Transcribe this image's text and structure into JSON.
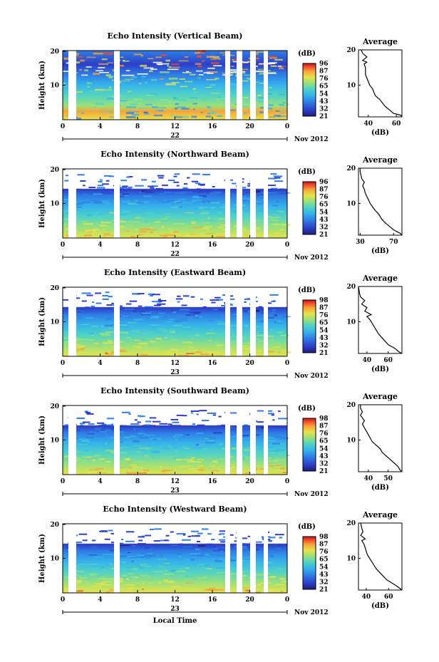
{
  "chart_data": [
    {
      "type": "heatmap",
      "title": "Echo Intensity (Vertical Beam)",
      "ylabel": "Height (km)",
      "y_ticks": [
        "20",
        "10"
      ],
      "x_ticks": [
        "0",
        "4",
        "8",
        "12",
        "16",
        "20",
        "0"
      ],
      "date_label": "22",
      "month_label": "Nov 2012",
      "colorbar_title": "(dB)",
      "colorbar_ticks": [
        "96",
        "87",
        "76",
        "65",
        "54",
        "43",
        "32",
        "21"
      ],
      "profile": {
        "title": "Average",
        "xlabel": "(dB)",
        "x_ticks": [
          "40",
          "60"
        ],
        "y_ticks": [
          "20",
          "10"
        ],
        "xlim": [
          33,
          64
        ],
        "values": [
          [
            64,
            1
          ],
          [
            63,
            1.5
          ],
          [
            58,
            2
          ],
          [
            55,
            3
          ],
          [
            52,
            4
          ],
          [
            50,
            5
          ],
          [
            48,
            6
          ],
          [
            45,
            7
          ],
          [
            44,
            8
          ],
          [
            43,
            9
          ],
          [
            41,
            10
          ],
          [
            40,
            11
          ],
          [
            39,
            12
          ],
          [
            38,
            13
          ],
          [
            38,
            14
          ],
          [
            38,
            15
          ],
          [
            37,
            16
          ],
          [
            39,
            16.5
          ],
          [
            36,
            17
          ],
          [
            39,
            18
          ],
          [
            36,
            19
          ],
          [
            35,
            20
          ]
        ]
      }
    },
    {
      "type": "heatmap",
      "title": "Echo Intensity (Northward Beam)",
      "ylabel": "Height (km)",
      "y_ticks": [
        "20",
        "10"
      ],
      "x_ticks": [
        "0",
        "4",
        "8",
        "12",
        "16",
        "20",
        "0"
      ],
      "date_label": "22",
      "month_label": "Nov 2012",
      "colorbar_title": "(dB)",
      "colorbar_ticks": [
        "96",
        "87",
        "76",
        "65",
        "54",
        "43",
        "32",
        "21"
      ],
      "profile": {
        "title": "Average",
        "xlabel": "(dB)",
        "x_ticks": [
          "30",
          "70"
        ],
        "y_ticks": [
          "20",
          "10"
        ],
        "xlim": [
          28,
          80
        ],
        "values": [
          [
            80,
            1
          ],
          [
            78,
            1.5
          ],
          [
            70,
            2.5
          ],
          [
            65,
            3.5
          ],
          [
            60,
            4.5
          ],
          [
            56,
            5.5
          ],
          [
            52,
            7
          ],
          [
            48,
            8
          ],
          [
            45,
            9
          ],
          [
            42,
            10
          ],
          [
            40,
            11
          ],
          [
            38,
            12
          ],
          [
            36,
            13
          ],
          [
            35,
            14
          ],
          [
            33,
            15
          ],
          [
            35,
            16
          ],
          [
            32,
            17
          ],
          [
            31,
            18
          ],
          [
            30,
            19
          ],
          [
            30,
            20
          ]
        ]
      }
    },
    {
      "type": "heatmap",
      "title": "Echo Intensity (Eastward Beam)",
      "ylabel": "Height (km)",
      "y_ticks": [
        "20",
        "10"
      ],
      "x_ticks": [
        "0",
        "4",
        "8",
        "12",
        "16",
        "20",
        "0"
      ],
      "date_label": "23",
      "month_label": "Nov 2012",
      "colorbar_title": "(dB)",
      "colorbar_ticks": [
        "98",
        "87",
        "76",
        "65",
        "54",
        "43",
        "32",
        "21"
      ],
      "profile": {
        "title": "Average",
        "xlabel": "(dB)",
        "x_ticks": [
          "40",
          "60"
        ],
        "y_ticks": [
          "20",
          "10"
        ],
        "xlim": [
          32,
          73
        ],
        "values": [
          [
            73,
            1
          ],
          [
            70,
            1.5
          ],
          [
            66,
            2.5
          ],
          [
            60,
            3.5
          ],
          [
            57,
            4.5
          ],
          [
            54,
            5.5
          ],
          [
            51,
            6.5
          ],
          [
            49,
            7.5
          ],
          [
            47,
            8.5
          ],
          [
            45,
            9.5
          ],
          [
            43,
            10.5
          ],
          [
            40,
            11.5
          ],
          [
            44,
            12
          ],
          [
            38,
            13
          ],
          [
            40,
            14
          ],
          [
            35,
            15
          ],
          [
            38,
            16
          ],
          [
            34,
            17
          ],
          [
            33,
            18
          ],
          [
            32,
            20
          ]
        ]
      }
    },
    {
      "type": "heatmap",
      "title": "Echo Intensity (Southward Beam)",
      "ylabel": "Height (km)",
      "y_ticks": [
        "20",
        "10"
      ],
      "x_ticks": [
        "0",
        "4",
        "8",
        "12",
        "16",
        "20",
        "0"
      ],
      "date_label": "23",
      "month_label": "Nov 2012",
      "colorbar_title": "(dB)",
      "colorbar_ticks": [
        "98",
        "87",
        "76",
        "65",
        "54",
        "43",
        "32",
        "21"
      ],
      "profile": {
        "title": "Average",
        "xlabel": "(dB)",
        "x_ticks": [
          "40",
          "50"
        ],
        "y_ticks": [
          "20",
          "10"
        ],
        "xlim": [
          35,
          57
        ],
        "values": [
          [
            57,
            1
          ],
          [
            56,
            1.5
          ],
          [
            55,
            2.5
          ],
          [
            53,
            3.5
          ],
          [
            51,
            4.5
          ],
          [
            49,
            5.5
          ],
          [
            47,
            6.5
          ],
          [
            46,
            7.5
          ],
          [
            44,
            8.5
          ],
          [
            42,
            9.5
          ],
          [
            41,
            10.5
          ],
          [
            40,
            11.5
          ],
          [
            39,
            12.5
          ],
          [
            38,
            13.5
          ],
          [
            37,
            14.5
          ],
          [
            38,
            15.5
          ],
          [
            36,
            17
          ],
          [
            37,
            18
          ],
          [
            36,
            19
          ],
          [
            36,
            20
          ]
        ]
      }
    },
    {
      "type": "heatmap",
      "title": "Echo Intensity (Westward Beam)",
      "ylabel": "Height (km)",
      "y_ticks": [
        "20",
        "10"
      ],
      "x_ticks": [
        "0",
        "4",
        "8",
        "12",
        "16",
        "20",
        "0"
      ],
      "date_label": "23",
      "month_label": "Nov 2012",
      "xlabel": "Local Time",
      "colorbar_title": "(dB)",
      "colorbar_ticks": [
        "98",
        "87",
        "76",
        "65",
        "54",
        "43",
        "32",
        "21"
      ],
      "profile": {
        "title": "Average",
        "xlabel": "(dB)",
        "x_ticks": [
          "40",
          "60"
        ],
        "y_ticks": [
          "20",
          "10"
        ],
        "xlim": [
          33,
          72
        ],
        "values": [
          [
            72,
            1
          ],
          [
            68,
            2
          ],
          [
            63,
            3
          ],
          [
            58,
            4
          ],
          [
            55,
            5
          ],
          [
            52,
            6
          ],
          [
            49,
            7
          ],
          [
            47,
            8
          ],
          [
            45,
            9
          ],
          [
            43,
            10
          ],
          [
            41,
            11
          ],
          [
            40,
            12
          ],
          [
            39,
            13
          ],
          [
            38,
            14
          ],
          [
            36,
            15
          ],
          [
            39,
            15.5
          ],
          [
            35,
            16.5
          ],
          [
            37,
            17.5
          ],
          [
            36,
            18.5
          ],
          [
            35,
            20
          ]
        ]
      }
    }
  ],
  "palette": [
    "#1c1c7a",
    "#2e3fc8",
    "#2f7ee6",
    "#36b4ea",
    "#53d3c2",
    "#9be07a",
    "#e6e34a",
    "#f7a33a",
    "#ef4a2a",
    "#c4141a"
  ]
}
